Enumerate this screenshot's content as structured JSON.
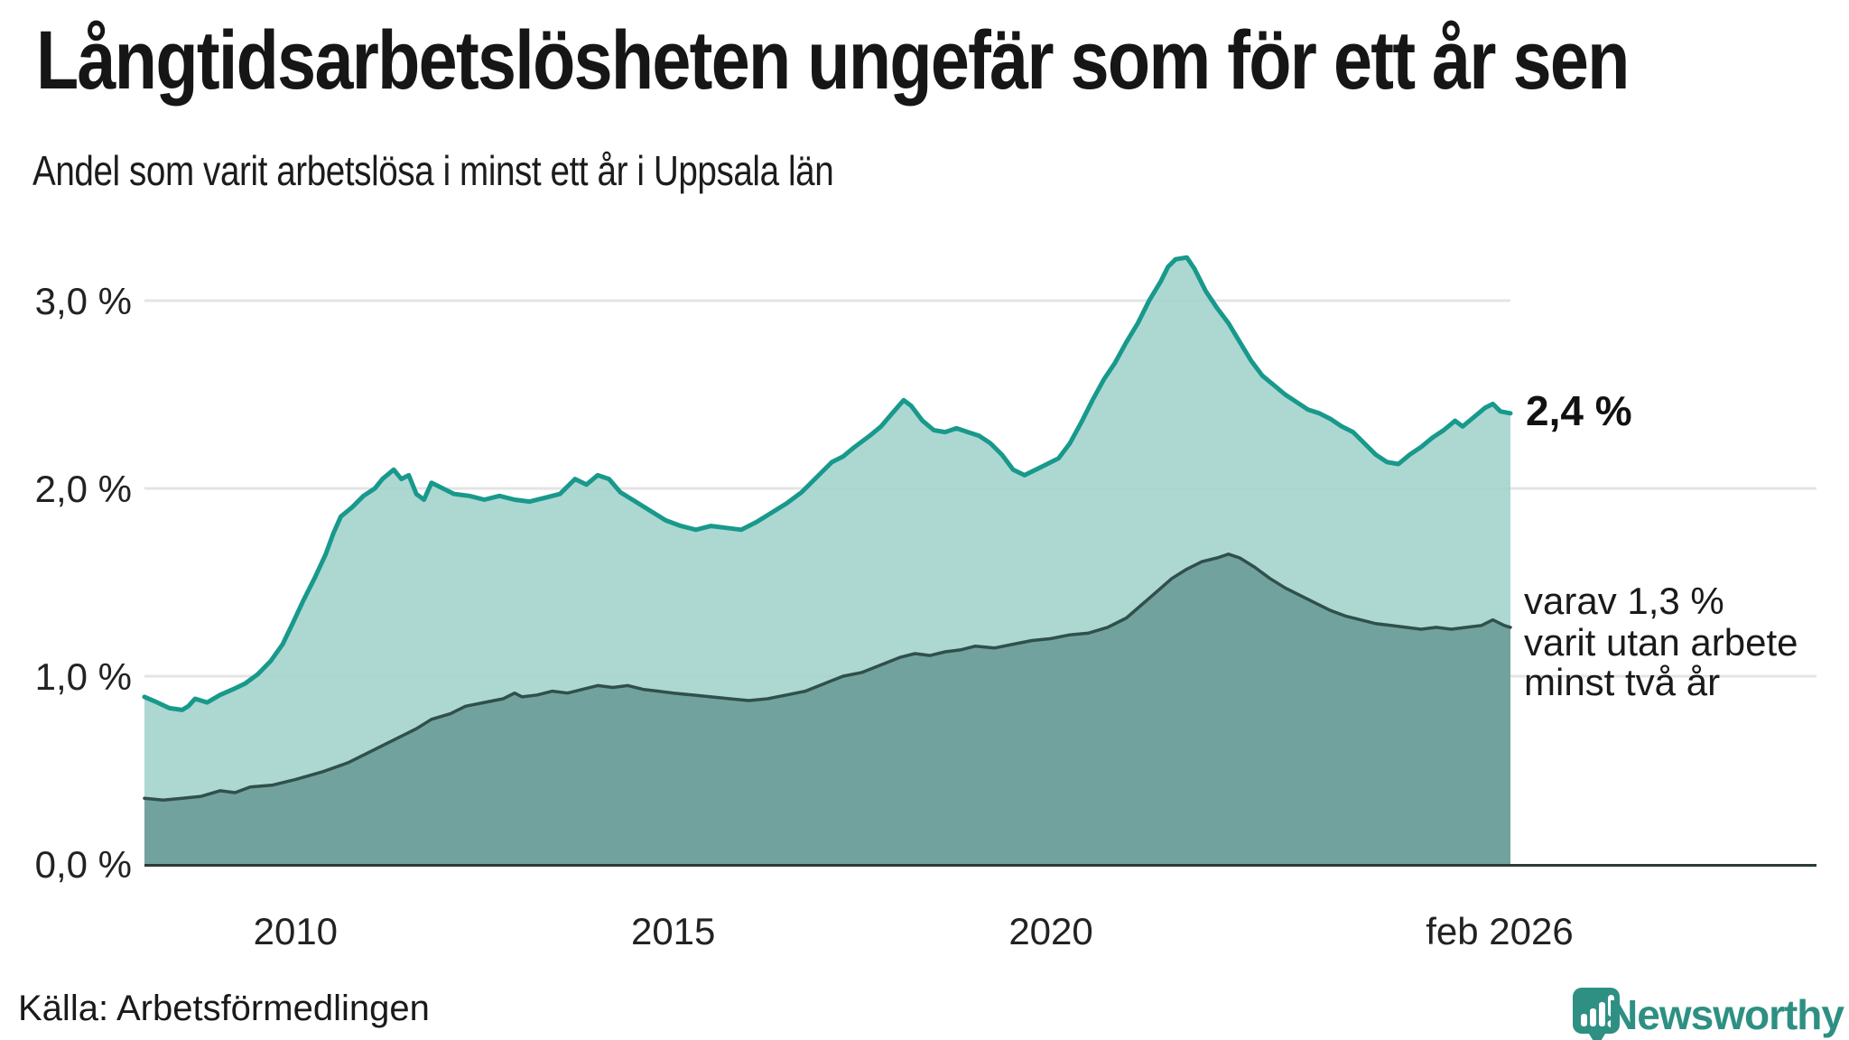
{
  "header": {
    "title": "Långtidsarbetslösheten ungefär som för ett år sen",
    "subtitle": "Andel som varit arbetslösa i minst ett år i Uppsala län"
  },
  "annotations": {
    "value_label": "2,4 %",
    "note_lines": [
      "varav 1,3 %",
      "varit utan arbete",
      "minst två år"
    ]
  },
  "footer": {
    "source": "Källa: Arbetsförmedlingen",
    "brand": "Newsworthy"
  },
  "colors": {
    "grid": "#e4e4e7",
    "axis": "#2b3a37",
    "tick_text": "#222222",
    "accent_teal": "#18998b",
    "brand_teal": "#2e9082"
  },
  "chart_data": {
    "type": "area",
    "title": "Långtidsarbetslösheten ungefär som för ett år sen",
    "subtitle": "Andel som varit arbetslösa i minst ett år i Uppsala län",
    "grid": true,
    "x_axis": {
      "range": [
        2008.0,
        2026.083
      ],
      "ticks": [
        {
          "label": "2010",
          "year": 2010,
          "dx": 0
        },
        {
          "label": "2015",
          "year": 2015,
          "dx": 0
        },
        {
          "label": "2020",
          "year": 2020,
          "dx": 0
        },
        {
          "label": "feb 2026",
          "year": 2026.083,
          "dx": -12
        }
      ]
    },
    "y_axis": {
      "range": [
        0,
        3.4
      ],
      "unit": "%",
      "ticks": [
        {
          "label": "0,0 %",
          "value": 0,
          "extend": true
        },
        {
          "label": "1,0 %",
          "value": 1,
          "extend": true
        },
        {
          "label": "2,0 %",
          "value": 2,
          "extend": true
        },
        {
          "label": "3,0 %",
          "value": 3,
          "extend": false
        }
      ]
    },
    "series": [
      {
        "name": "Andel arbetslösa minst ett år",
        "end_label": "2,4 %",
        "end_value": 2.4,
        "line_color": "#18998b",
        "fill_color": "#a2d3cc",
        "fill_opacity": 0.88,
        "line_width": 5,
        "points": [
          [
            2008.0,
            0.89
          ],
          [
            2008.17,
            0.86
          ],
          [
            2008.33,
            0.83
          ],
          [
            2008.5,
            0.82
          ],
          [
            2008.58,
            0.84
          ],
          [
            2008.67,
            0.88
          ],
          [
            2008.83,
            0.86
          ],
          [
            2009.0,
            0.9
          ],
          [
            2009.17,
            0.93
          ],
          [
            2009.33,
            0.96
          ],
          [
            2009.5,
            1.01
          ],
          [
            2009.67,
            1.08
          ],
          [
            2009.83,
            1.17
          ],
          [
            2009.96,
            1.28
          ],
          [
            2010.1,
            1.4
          ],
          [
            2010.25,
            1.52
          ],
          [
            2010.4,
            1.65
          ],
          [
            2010.5,
            1.76
          ],
          [
            2010.6,
            1.85
          ],
          [
            2010.75,
            1.9
          ],
          [
            2010.9,
            1.96
          ],
          [
            2011.05,
            2.0
          ],
          [
            2011.15,
            2.05
          ],
          [
            2011.3,
            2.1
          ],
          [
            2011.4,
            2.05
          ],
          [
            2011.5,
            2.07
          ],
          [
            2011.6,
            1.97
          ],
          [
            2011.7,
            1.94
          ],
          [
            2011.8,
            2.03
          ],
          [
            2011.95,
            2.0
          ],
          [
            2012.1,
            1.97
          ],
          [
            2012.3,
            1.96
          ],
          [
            2012.5,
            1.94
          ],
          [
            2012.7,
            1.96
          ],
          [
            2012.9,
            1.94
          ],
          [
            2013.1,
            1.93
          ],
          [
            2013.3,
            1.95
          ],
          [
            2013.5,
            1.97
          ],
          [
            2013.7,
            2.05
          ],
          [
            2013.85,
            2.02
          ],
          [
            2014.0,
            2.07
          ],
          [
            2014.15,
            2.05
          ],
          [
            2014.3,
            1.98
          ],
          [
            2014.5,
            1.93
          ],
          [
            2014.7,
            1.88
          ],
          [
            2014.9,
            1.83
          ],
          [
            2015.1,
            1.8
          ],
          [
            2015.3,
            1.78
          ],
          [
            2015.5,
            1.8
          ],
          [
            2015.7,
            1.79
          ],
          [
            2015.9,
            1.78
          ],
          [
            2016.1,
            1.82
          ],
          [
            2016.3,
            1.87
          ],
          [
            2016.5,
            1.92
          ],
          [
            2016.7,
            1.98
          ],
          [
            2016.9,
            2.06
          ],
          [
            2017.1,
            2.14
          ],
          [
            2017.25,
            2.17
          ],
          [
            2017.4,
            2.22
          ],
          [
            2017.6,
            2.28
          ],
          [
            2017.75,
            2.33
          ],
          [
            2017.9,
            2.4
          ],
          [
            2018.05,
            2.47
          ],
          [
            2018.15,
            2.44
          ],
          [
            2018.3,
            2.36
          ],
          [
            2018.45,
            2.31
          ],
          [
            2018.6,
            2.3
          ],
          [
            2018.75,
            2.32
          ],
          [
            2018.9,
            2.3
          ],
          [
            2019.05,
            2.28
          ],
          [
            2019.2,
            2.24
          ],
          [
            2019.35,
            2.18
          ],
          [
            2019.5,
            2.1
          ],
          [
            2019.65,
            2.07
          ],
          [
            2019.8,
            2.1
          ],
          [
            2019.95,
            2.13
          ],
          [
            2020.1,
            2.16
          ],
          [
            2020.25,
            2.24
          ],
          [
            2020.4,
            2.35
          ],
          [
            2020.55,
            2.47
          ],
          [
            2020.7,
            2.58
          ],
          [
            2020.85,
            2.67
          ],
          [
            2021.0,
            2.78
          ],
          [
            2021.15,
            2.88
          ],
          [
            2021.3,
            3.0
          ],
          [
            2021.45,
            3.1
          ],
          [
            2021.55,
            3.18
          ],
          [
            2021.65,
            3.22
          ],
          [
            2021.8,
            3.23
          ],
          [
            2021.9,
            3.17
          ],
          [
            2022.05,
            3.05
          ],
          [
            2022.2,
            2.96
          ],
          [
            2022.35,
            2.88
          ],
          [
            2022.5,
            2.78
          ],
          [
            2022.65,
            2.68
          ],
          [
            2022.8,
            2.6
          ],
          [
            2022.95,
            2.55
          ],
          [
            2023.1,
            2.5
          ],
          [
            2023.25,
            2.46
          ],
          [
            2023.4,
            2.42
          ],
          [
            2023.55,
            2.4
          ],
          [
            2023.7,
            2.37
          ],
          [
            2023.85,
            2.33
          ],
          [
            2024.0,
            2.3
          ],
          [
            2024.15,
            2.24
          ],
          [
            2024.3,
            2.18
          ],
          [
            2024.45,
            2.14
          ],
          [
            2024.6,
            2.13
          ],
          [
            2024.75,
            2.18
          ],
          [
            2024.9,
            2.22
          ],
          [
            2025.05,
            2.27
          ],
          [
            2025.2,
            2.31
          ],
          [
            2025.35,
            2.36
          ],
          [
            2025.45,
            2.33
          ],
          [
            2025.6,
            2.38
          ],
          [
            2025.75,
            2.43
          ],
          [
            2025.85,
            2.45
          ],
          [
            2025.95,
            2.41
          ],
          [
            2026.083,
            2.4
          ]
        ]
      },
      {
        "name": "Andel arbetslösa minst två år",
        "end_label": "varav 1,3 % varit utan arbete minst två år",
        "end_value": 1.3,
        "line_color": "#30504c",
        "fill_color": "#6f9e99",
        "fill_opacity": 0.94,
        "line_width": 3.5,
        "points": [
          [
            2008.0,
            0.35
          ],
          [
            2008.25,
            0.34
          ],
          [
            2008.5,
            0.35
          ],
          [
            2008.75,
            0.36
          ],
          [
            2009.0,
            0.39
          ],
          [
            2009.2,
            0.38
          ],
          [
            2009.4,
            0.41
          ],
          [
            2009.7,
            0.42
          ],
          [
            2010.0,
            0.45
          ],
          [
            2010.35,
            0.49
          ],
          [
            2010.7,
            0.54
          ],
          [
            2011.0,
            0.6
          ],
          [
            2011.3,
            0.66
          ],
          [
            2011.6,
            0.72
          ],
          [
            2011.8,
            0.77
          ],
          [
            2012.05,
            0.8
          ],
          [
            2012.25,
            0.84
          ],
          [
            2012.5,
            0.86
          ],
          [
            2012.75,
            0.88
          ],
          [
            2012.9,
            0.91
          ],
          [
            2013.0,
            0.89
          ],
          [
            2013.2,
            0.9
          ],
          [
            2013.4,
            0.92
          ],
          [
            2013.6,
            0.91
          ],
          [
            2013.8,
            0.93
          ],
          [
            2014.0,
            0.95
          ],
          [
            2014.2,
            0.94
          ],
          [
            2014.4,
            0.95
          ],
          [
            2014.6,
            0.93
          ],
          [
            2014.8,
            0.92
          ],
          [
            2015.0,
            0.91
          ],
          [
            2015.25,
            0.9
          ],
          [
            2015.5,
            0.89
          ],
          [
            2015.75,
            0.88
          ],
          [
            2016.0,
            0.87
          ],
          [
            2016.25,
            0.88
          ],
          [
            2016.5,
            0.9
          ],
          [
            2016.75,
            0.92
          ],
          [
            2017.0,
            0.96
          ],
          [
            2017.25,
            1.0
          ],
          [
            2017.5,
            1.02
          ],
          [
            2017.75,
            1.06
          ],
          [
            2018.0,
            1.1
          ],
          [
            2018.2,
            1.12
          ],
          [
            2018.4,
            1.11
          ],
          [
            2018.6,
            1.13
          ],
          [
            2018.8,
            1.14
          ],
          [
            2019.0,
            1.16
          ],
          [
            2019.25,
            1.15
          ],
          [
            2019.5,
            1.17
          ],
          [
            2019.75,
            1.19
          ],
          [
            2020.0,
            1.2
          ],
          [
            2020.25,
            1.22
          ],
          [
            2020.5,
            1.23
          ],
          [
            2020.75,
            1.26
          ],
          [
            2021.0,
            1.31
          ],
          [
            2021.2,
            1.38
          ],
          [
            2021.4,
            1.45
          ],
          [
            2021.6,
            1.52
          ],
          [
            2021.8,
            1.57
          ],
          [
            2022.0,
            1.61
          ],
          [
            2022.2,
            1.63
          ],
          [
            2022.35,
            1.65
          ],
          [
            2022.5,
            1.63
          ],
          [
            2022.7,
            1.58
          ],
          [
            2022.9,
            1.52
          ],
          [
            2023.1,
            1.47
          ],
          [
            2023.3,
            1.43
          ],
          [
            2023.5,
            1.39
          ],
          [
            2023.7,
            1.35
          ],
          [
            2023.9,
            1.32
          ],
          [
            2024.1,
            1.3
          ],
          [
            2024.3,
            1.28
          ],
          [
            2024.5,
            1.27
          ],
          [
            2024.7,
            1.26
          ],
          [
            2024.9,
            1.25
          ],
          [
            2025.1,
            1.26
          ],
          [
            2025.3,
            1.25
          ],
          [
            2025.5,
            1.26
          ],
          [
            2025.7,
            1.27
          ],
          [
            2025.85,
            1.3
          ],
          [
            2026.0,
            1.27
          ],
          [
            2026.083,
            1.26
          ]
        ]
      }
    ]
  }
}
